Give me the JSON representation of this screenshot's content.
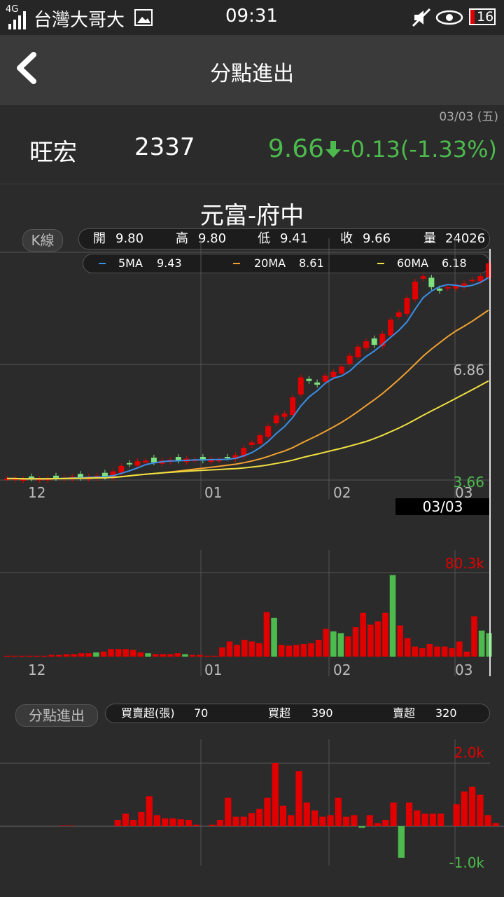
{
  "status_bar": {
    "network": "4G",
    "carrier": "台灣大哥大",
    "time": "09:31",
    "battery": "16"
  },
  "header": {
    "title": "分點進出",
    "back_icon": "chevron-left-icon"
  },
  "quote": {
    "date": "03/03 (五)",
    "name": "旺宏",
    "code": "2337",
    "price": "9.66",
    "change": "-0.13(-1.33%)",
    "arrow_icon": "arrow-down-icon",
    "color_down": "#4cba4c",
    "color_up": "#e00000"
  },
  "broker": "元富-府中",
  "kline": {
    "label": "K線",
    "ohlcv": [
      {
        "key": "開",
        "val": "9.80"
      },
      {
        "key": "高",
        "val": "9.80"
      },
      {
        "key": "低",
        "val": "9.41"
      },
      {
        "key": "收",
        "val": "9.66"
      },
      {
        "key": "量",
        "val": "24026"
      }
    ],
    "ma": [
      {
        "name": "5MA",
        "val": "9.43",
        "color": "#3a8ee6"
      },
      {
        "name": "20MA",
        "val": "8.61",
        "color": "#f0a030"
      },
      {
        "name": "60MA",
        "val": "6.18",
        "color": "#f0e040"
      }
    ],
    "y_labels": [
      "6.86",
      "3.66"
    ],
    "months": [
      "12",
      "01",
      "02",
      "03"
    ],
    "cursor_date": "03/03"
  },
  "volume": {
    "max_label": "80.3k",
    "months": [
      "12",
      "01",
      "02",
      "03"
    ]
  },
  "broker_flow": {
    "label": "分點進出",
    "stats": [
      {
        "key": "買賣超(張)",
        "val": "70"
      },
      {
        "key": "買超",
        "val": "390"
      },
      {
        "key": "賣超",
        "val": "320"
      }
    ],
    "max_label": "2.0k",
    "min_label": "-1.0k"
  }
}
